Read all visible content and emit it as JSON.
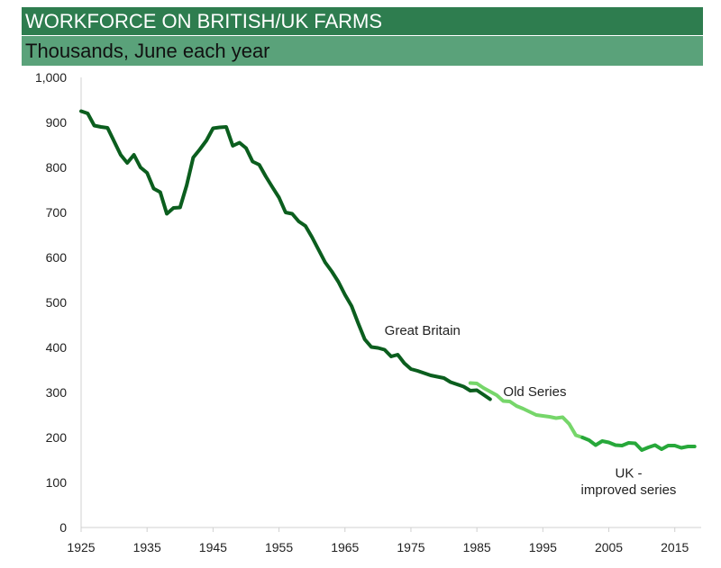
{
  "header": {
    "title": "WORKFORCE ON BRITISH/UK FARMS",
    "subtitle": "Thousands, June each year"
  },
  "colors": {
    "title_bg": "#2e7d4f",
    "subtitle_bg": "#5aa27a",
    "great_britain": "#0b5e1e",
    "old_series": "#76d66a",
    "uk_improved": "#27a83a"
  },
  "chart_data": {
    "type": "line",
    "title": "WORKFORCE ON BRITISH/UK FARMS",
    "subtitle": "Thousands, June each year",
    "xlabel": "",
    "ylabel": "",
    "xlim": [
      1925,
      2019
    ],
    "ylim": [
      0,
      1000
    ],
    "x_ticks": [
      1925,
      1935,
      1945,
      1955,
      1965,
      1975,
      1985,
      1995,
      2005,
      2015
    ],
    "y_ticks": [
      0,
      100,
      200,
      300,
      400,
      500,
      600,
      700,
      800,
      900,
      1000
    ],
    "y_tick_labels": [
      "0",
      "100",
      "200",
      "300",
      "400",
      "500",
      "600",
      "700",
      "800",
      "900",
      "1,000"
    ],
    "grid": false,
    "legend": "none",
    "series": [
      {
        "name": "Great Britain",
        "color": "#0b5e1e",
        "x": [
          1925,
          1926,
          1927,
          1928,
          1929,
          1930,
          1931,
          1932,
          1933,
          1934,
          1935,
          1936,
          1937,
          1938,
          1939,
          1940,
          1941,
          1942,
          1943,
          1944,
          1945,
          1946,
          1947,
          1948,
          1949,
          1950,
          1951,
          1952,
          1953,
          1954,
          1955,
          1956,
          1957,
          1958,
          1959,
          1960,
          1961,
          1962,
          1963,
          1964,
          1965,
          1966,
          1967,
          1968,
          1969,
          1970,
          1971,
          1972,
          1973,
          1974,
          1975,
          1976,
          1977,
          1978,
          1979,
          1980,
          1981,
          1982,
          1983,
          1984,
          1985,
          1986,
          1987
        ],
        "y": [
          925,
          920,
          893,
          890,
          888,
          858,
          828,
          810,
          828,
          800,
          788,
          753,
          745,
          697,
          710,
          711,
          760,
          822,
          840,
          860,
          887,
          889,
          890,
          848,
          855,
          843,
          813,
          806,
          780,
          756,
          733,
          700,
          697,
          680,
          670,
          645,
          617,
          589,
          569,
          546,
          517,
          492,
          454,
          418,
          401,
          399,
          395,
          380,
          384,
          365,
          352,
          348,
          343,
          338,
          335,
          332,
          323,
          318,
          313,
          304,
          305,
          295,
          285
        ]
      },
      {
        "name": "Old Series",
        "color": "#76d66a",
        "x": [
          1984,
          1985,
          1986,
          1987,
          1988,
          1989,
          1990,
          1991,
          1992,
          1993,
          1994,
          1995,
          1996,
          1997,
          1998,
          1999,
          2000,
          2001
        ],
        "y": [
          321,
          320,
          310,
          302,
          294,
          281,
          280,
          270,
          264,
          257,
          250,
          248,
          246,
          243,
          245,
          230,
          205,
          200
        ]
      },
      {
        "name": "UK - improved series",
        "color": "#27a83a",
        "x": [
          2001,
          2002,
          2003,
          2004,
          2005,
          2006,
          2007,
          2008,
          2009,
          2010,
          2011,
          2012,
          2013,
          2014,
          2015,
          2016,
          2017,
          2018
        ],
        "y": [
          200,
          194,
          183,
          192,
          189,
          183,
          182,
          188,
          187,
          172,
          178,
          183,
          174,
          182,
          182,
          177,
          180,
          180
        ]
      }
    ],
    "annotations": [
      {
        "text": "Great Britain",
        "x": 1971,
        "y": 428
      },
      {
        "text": "Old Series",
        "x": 1989,
        "y": 292
      },
      {
        "text": "UK -",
        "x": 2008,
        "y": 111
      },
      {
        "text": "improved series",
        "x": 2008,
        "y": 74
      }
    ]
  }
}
